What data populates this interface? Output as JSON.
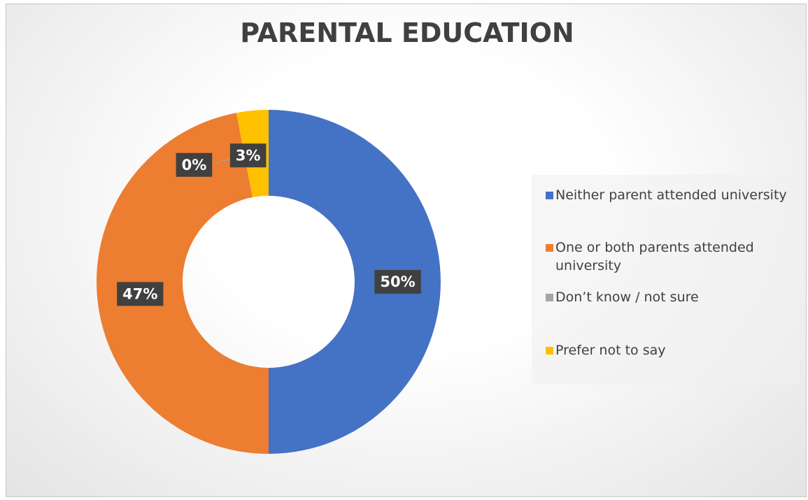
{
  "chart_data": {
    "type": "donut",
    "title": "PARENTAL EDUCATION",
    "categories": [
      "Neither parent attended university",
      "One or both parents attended university",
      "Don’t know / not sure",
      "Prefer not to say"
    ],
    "values": [
      50,
      47,
      0,
      3
    ],
    "value_labels": [
      "50%",
      "47%",
      "0%",
      "3%"
    ],
    "colors": [
      "#4472c4",
      "#ed7d31",
      "#a5a5a5",
      "#ffc000"
    ],
    "legend": "right"
  }
}
